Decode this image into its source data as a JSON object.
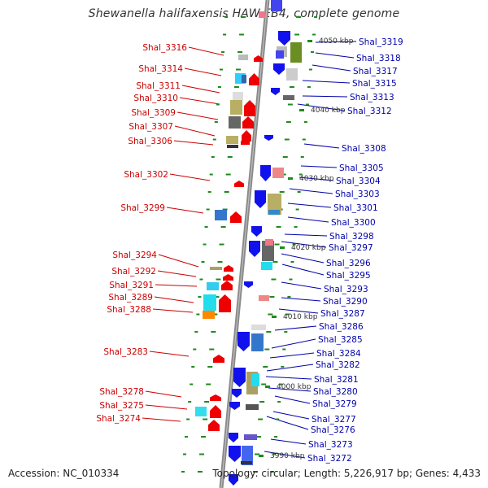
{
  "title": "Shewanella halifaxensis HAW-EB4, complete genome",
  "accession": "Accession: NC_010334",
  "summary": "Topology: circular; Length: 5,226,917 bp; Genes: 4,433",
  "colors": {
    "left_label": "#cc0000",
    "right_label": "#0000aa",
    "backbone": "#808080",
    "tick": "#1f8a1f"
  },
  "kbp_labels": [
    "4050 kbp",
    "4040 kbp",
    "4030 kbp",
    "4020 kbp",
    "4010 kbp",
    "4000 kbp",
    "3990 kbp"
  ],
  "left_genes": [
    "Shal_3316",
    "Shal_3314",
    "Shal_3311",
    "Shal_3310",
    "Shal_3309",
    "Shal_3307",
    "Shal_3306",
    "Shal_3302",
    "Shal_3299",
    "Shal_3294",
    "Shal_3292",
    "Shal_3291",
    "Shal_3289",
    "Shal_3288",
    "Shal_3283",
    "Shal_3278",
    "Shal_3275",
    "Shal_3274"
  ],
  "right_genes": [
    "Shal_3319",
    "Shal_3318",
    "Shal_3317",
    "Shal_3315",
    "Shal_3313",
    "Shal_3312",
    "Shal_3308",
    "Shal_3305",
    "Shal_3304",
    "Shal_3303",
    "Shal_3301",
    "Shal_3300",
    "Shal_3298",
    "Shal_3297",
    "Shal_3296",
    "Shal_3295",
    "Shal_3293",
    "Shal_3290",
    "Shal_3287",
    "Shal_3286",
    "Shal_3285",
    "Shal_3284",
    "Shal_3282",
    "Shal_3281",
    "Shal_3280",
    "Shal_3279",
    "Shal_3277",
    "Shal_3276",
    "Shal_3273",
    "Shal_3272"
  ]
}
